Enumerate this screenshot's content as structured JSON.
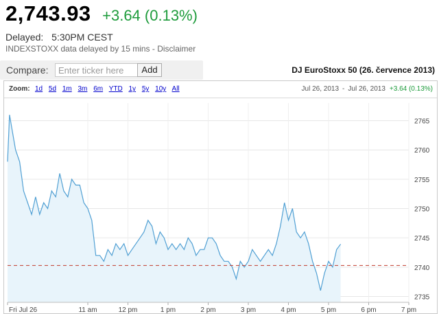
{
  "quote": {
    "price": "2,743.93",
    "change": "+3.64 (0.13%)",
    "delayed_label": "Delayed:",
    "delayed_time": "5:30PM CEST",
    "source_note": "INDEXSTOXX data delayed by 15 mins - Disclaimer"
  },
  "compare": {
    "label": "Compare:",
    "placeholder": "Enter ticker here",
    "button": "Add"
  },
  "chart": {
    "title": "DJ EuroStoxx 50 (26. července 2013)",
    "zoom_label": "Zoom:",
    "zoom_options": [
      "1d",
      "5d",
      "1m",
      "3m",
      "6m",
      "YTD",
      "1y",
      "5y",
      "10y",
      "All"
    ],
    "range_start": "Jul 26, 2013",
    "range_sep": "-",
    "range_end": "Jul 26, 2013",
    "range_change": "+3.64 (0.13%)"
  },
  "colors": {
    "positive": "#1d9b3b",
    "line": "#4f9fd3",
    "fill": "#e8f4fb",
    "prev_close_line": "#c0392b",
    "link": "#0000cc"
  },
  "chart_data": {
    "type": "area",
    "x_ticks": [
      "Fri Jul 26",
      "11 am",
      "12 pm",
      "1 pm",
      "2 pm",
      "3 pm",
      "4 pm",
      "5 pm",
      "6 pm",
      "7 pm"
    ],
    "y_ticks": [
      "2765",
      "2760",
      "2755",
      "2750",
      "2745",
      "2740",
      "2735"
    ],
    "ylim": [
      2734,
      2768
    ],
    "previous_close": 2740.29,
    "x": [
      9.0,
      9.05,
      9.1,
      9.2,
      9.3,
      9.4,
      9.5,
      9.6,
      9.7,
      9.8,
      9.9,
      10.0,
      10.1,
      10.2,
      10.3,
      10.4,
      10.5,
      10.6,
      10.7,
      10.8,
      10.9,
      11.0,
      11.1,
      11.2,
      11.3,
      11.4,
      11.5,
      11.6,
      11.7,
      11.8,
      11.9,
      12.0,
      12.1,
      12.2,
      12.3,
      12.4,
      12.5,
      12.6,
      12.7,
      12.8,
      12.9,
      13.0,
      13.1,
      13.2,
      13.3,
      13.4,
      13.5,
      13.6,
      13.7,
      13.8,
      13.9,
      14.0,
      14.1,
      14.2,
      14.3,
      14.4,
      14.5,
      14.6,
      14.7,
      14.8,
      14.9,
      15.0,
      15.1,
      15.2,
      15.3,
      15.4,
      15.5,
      15.6,
      15.7,
      15.8,
      15.9,
      16.0,
      16.1,
      16.2,
      16.3,
      16.4,
      16.5,
      16.6,
      16.7,
      16.8,
      16.9,
      17.0,
      17.1,
      17.2,
      17.3
    ],
    "y": [
      2758,
      2766,
      2764,
      2760,
      2758,
      2753,
      2751,
      2749,
      2752,
      2749,
      2751,
      2750,
      2753,
      2752,
      2756,
      2753,
      2752,
      2755,
      2754,
      2754,
      2751,
      2750,
      2748,
      2742,
      2742,
      2741,
      2743,
      2742,
      2744,
      2743,
      2744,
      2742,
      2743,
      2744,
      2745,
      2746,
      2748,
      2747,
      2744,
      2746,
      2745,
      2743,
      2744,
      2743,
      2744,
      2743,
      2745,
      2744,
      2742,
      2743,
      2743,
      2745,
      2745,
      2744,
      2742,
      2741,
      2741,
      2740,
      2738,
      2741,
      2740,
      2741,
      2743,
      2742,
      2741,
      2742,
      2743,
      2742,
      2744,
      2747,
      2751,
      2748,
      2750,
      2746,
      2745,
      2746,
      2744,
      2741,
      2739,
      2736,
      2739,
      2741,
      2740,
      2743,
      2743.93
    ]
  }
}
